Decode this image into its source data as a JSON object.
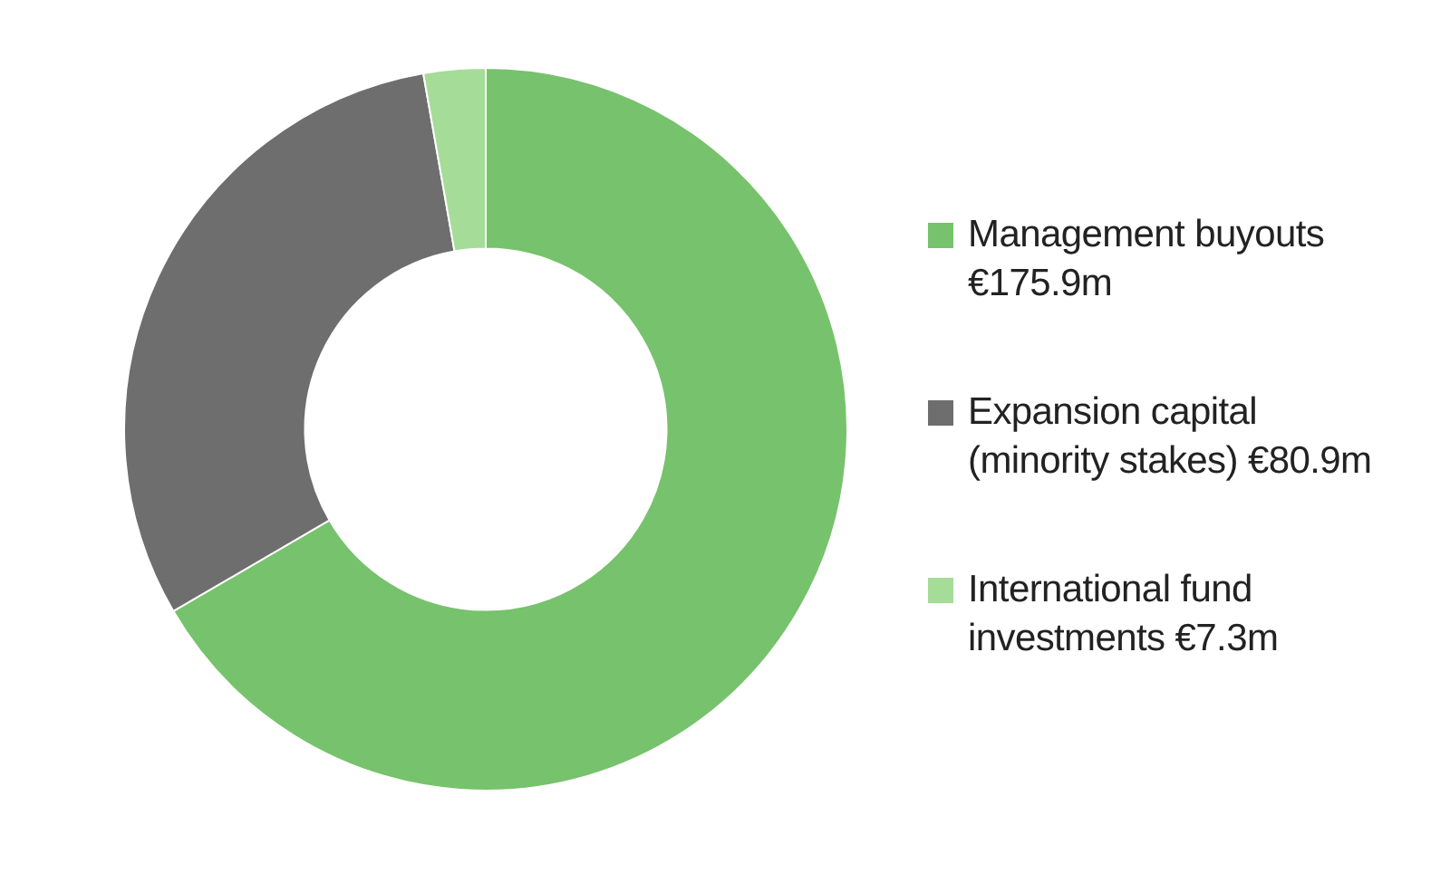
{
  "chart_data": {
    "type": "donut",
    "categories": [
      "Management buyouts",
      "Expansion capital (minority stakes)",
      "International fund investments"
    ],
    "values": [
      175.9,
      80.9,
      7.3
    ],
    "value_labels": [
      "€175.9m",
      "€80.9m",
      "€7.3m"
    ],
    "colors": [
      "#77c26c",
      "#6e6e6e",
      "#a5dc98"
    ],
    "legend": "right"
  }
}
